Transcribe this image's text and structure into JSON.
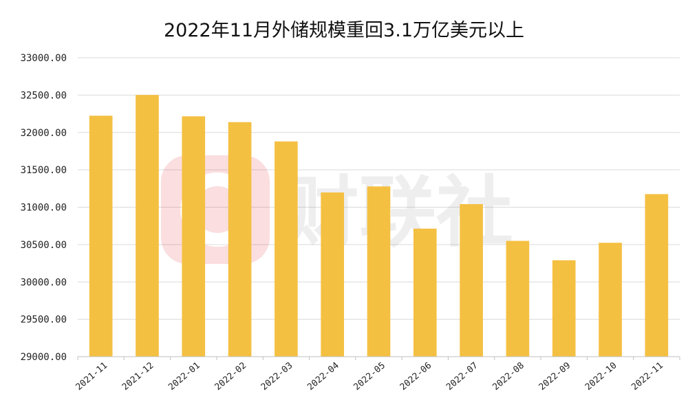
{
  "chart_data": {
    "type": "bar",
    "title": "2022年11月外储规模重回3.1万亿美元以上",
    "categories": [
      "2021-11",
      "2021-12",
      "2022-01",
      "2022-02",
      "2022-03",
      "2022-04",
      "2022-05",
      "2022-06",
      "2022-07",
      "2022-08",
      "2022-09",
      "2022-10",
      "2022-11"
    ],
    "values": [
      32224,
      32502,
      32216,
      32138,
      31880,
      31197,
      31278,
      30713,
      31041,
      30549,
      30290,
      30524,
      31175
    ],
    "ylim": [
      29000,
      33000
    ],
    "yticks": [
      "29000.00",
      "29500.00",
      "30000.00",
      "30500.00",
      "31000.00",
      "31500.00",
      "32000.00",
      "32500.00",
      "33000.00"
    ],
    "grid": true,
    "bar_color": "#F4C042",
    "xlabel": "",
    "ylabel": ""
  },
  "watermark": {
    "text": "财联社",
    "icon_name": "cailianshe-logo-icon"
  }
}
